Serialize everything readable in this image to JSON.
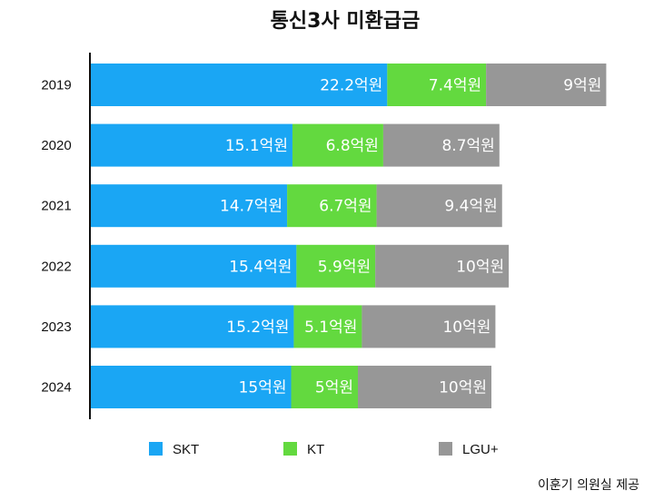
{
  "chart_data": {
    "type": "bar",
    "orientation": "horizontal",
    "stacked": true,
    "title": "통신3사 미환급금",
    "categories": [
      "2019",
      "2020",
      "2021",
      "2022",
      "2023",
      "2024"
    ],
    "series": [
      {
        "name": "SKT",
        "color": "#1aa6f4",
        "values": [
          22.2,
          15.1,
          14.7,
          15.4,
          15.2,
          15
        ],
        "labels": [
          "22.2억원",
          "15.1억원",
          "14.7억원",
          "15.4억원",
          "15.2억원",
          "15억원"
        ]
      },
      {
        "name": "KT",
        "color": "#63d93f",
        "values": [
          7.4,
          6.8,
          6.7,
          5.9,
          5.1,
          5
        ],
        "labels": [
          "7.4억원",
          "6.8억원",
          "6.7억원",
          "5.9억원",
          "5.1억원",
          "5억원"
        ]
      },
      {
        "name": "LGU+",
        "color": "#979797",
        "values": [
          9,
          8.7,
          9.4,
          10,
          10,
          10
        ],
        "labels": [
          "9억원",
          "8.7억원",
          "9.4억원",
          "10억원",
          "10억원",
          "10억원"
        ]
      }
    ],
    "legend_position": "bottom",
    "grid": false
  },
  "source": "이훈기 의원실 제공"
}
